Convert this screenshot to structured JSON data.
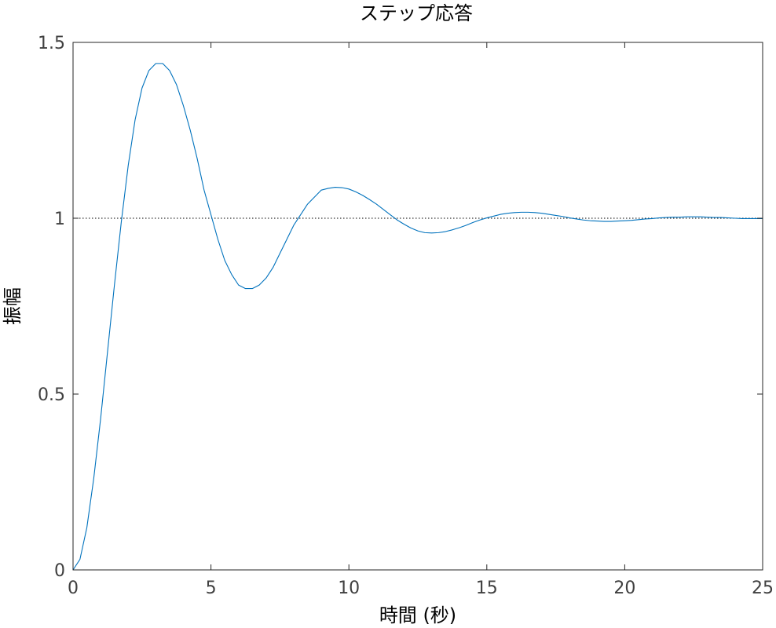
{
  "chart_data": {
    "type": "line",
    "title": "ステップ応答",
    "xlabel": "時間 (秒)",
    "ylabel": "振幅",
    "xlim": [
      0,
      25
    ],
    "ylim": [
      0,
      1.5
    ],
    "xticks": [
      0,
      5,
      10,
      15,
      20,
      25
    ],
    "yticks": [
      0,
      0.5,
      1,
      1.5
    ],
    "xtick_labels": [
      "0",
      "5",
      "10",
      "15",
      "20",
      "25"
    ],
    "ytick_labels": [
      "0",
      "0.5",
      "1",
      "1.5"
    ],
    "grid": false,
    "reference_line": {
      "y": 1,
      "style": "dotted"
    },
    "series": [
      {
        "color": "#0072bd",
        "points": [
          [
            0,
            0
          ],
          [
            0.25,
            0.03
          ],
          [
            0.5,
            0.12
          ],
          [
            0.75,
            0.26
          ],
          [
            1.0,
            0.43
          ],
          [
            1.25,
            0.62
          ],
          [
            1.5,
            0.81
          ],
          [
            1.75,
            0.99
          ],
          [
            2.0,
            1.15
          ],
          [
            2.25,
            1.28
          ],
          [
            2.5,
            1.37
          ],
          [
            2.75,
            1.42
          ],
          [
            3.0,
            1.44
          ],
          [
            3.25,
            1.44
          ],
          [
            3.5,
            1.42
          ],
          [
            3.75,
            1.38
          ],
          [
            4.0,
            1.32
          ],
          [
            4.25,
            1.25
          ],
          [
            4.5,
            1.17
          ],
          [
            4.75,
            1.08
          ],
          [
            5.0,
            1.01
          ],
          [
            5.25,
            0.94
          ],
          [
            5.5,
            0.88
          ],
          [
            5.75,
            0.84
          ],
          [
            6.0,
            0.81
          ],
          [
            6.25,
            0.8
          ],
          [
            6.5,
            0.8
          ],
          [
            6.75,
            0.81
          ],
          [
            7.0,
            0.83
          ],
          [
            7.25,
            0.86
          ],
          [
            7.5,
            0.9
          ],
          [
            7.75,
            0.94
          ],
          [
            8.0,
            0.98
          ],
          [
            8.25,
            1.01
          ],
          [
            8.5,
            1.04
          ],
          [
            8.75,
            1.06
          ],
          [
            9.0,
            1.08
          ],
          [
            9.25,
            1.085
          ],
          [
            9.5,
            1.088
          ],
          [
            9.75,
            1.087
          ],
          [
            10.0,
            1.083
          ],
          [
            10.25,
            1.075
          ],
          [
            10.5,
            1.065
          ],
          [
            10.75,
            1.053
          ],
          [
            11.0,
            1.04
          ],
          [
            11.25,
            1.025
          ],
          [
            11.5,
            1.01
          ],
          [
            11.75,
            0.995
          ],
          [
            12.0,
            0.983
          ],
          [
            12.25,
            0.972
          ],
          [
            12.5,
            0.964
          ],
          [
            12.75,
            0.959
          ],
          [
            13.0,
            0.958
          ],
          [
            13.25,
            0.959
          ],
          [
            13.5,
            0.962
          ],
          [
            13.75,
            0.967
          ],
          [
            14.0,
            0.973
          ],
          [
            14.25,
            0.98
          ],
          [
            14.5,
            0.988
          ],
          [
            14.75,
            0.995
          ],
          [
            15.0,
            1.001
          ],
          [
            15.25,
            1.006
          ],
          [
            15.5,
            1.011
          ],
          [
            15.75,
            1.014
          ],
          [
            16.0,
            1.016
          ],
          [
            16.25,
            1.017
          ],
          [
            16.5,
            1.017
          ],
          [
            16.75,
            1.016
          ],
          [
            17.0,
            1.014
          ],
          [
            17.25,
            1.011
          ],
          [
            17.5,
            1.008
          ],
          [
            17.75,
            1.005
          ],
          [
            18.0,
            1.001
          ],
          [
            18.25,
            0.998
          ],
          [
            18.5,
            0.995
          ],
          [
            18.75,
            0.993
          ],
          [
            19.0,
            0.992
          ],
          [
            19.25,
            0.991
          ],
          [
            19.5,
            0.991
          ],
          [
            19.75,
            0.992
          ],
          [
            20.0,
            0.993
          ],
          [
            20.25,
            0.994
          ],
          [
            20.5,
            0.996
          ],
          [
            20.75,
            0.998
          ],
          [
            21.0,
            0.999
          ],
          [
            21.25,
            1.001
          ],
          [
            21.5,
            1.002
          ],
          [
            21.75,
            1.003
          ],
          [
            22.0,
            1.003
          ],
          [
            22.25,
            1.004
          ],
          [
            22.5,
            1.004
          ],
          [
            22.75,
            1.004
          ],
          [
            23.0,
            1.003
          ],
          [
            23.25,
            1.002
          ],
          [
            23.5,
            1.002
          ],
          [
            23.75,
            1.001
          ],
          [
            24.0,
            1.0
          ],
          [
            24.25,
            0.999
          ],
          [
            24.5,
            0.999
          ],
          [
            24.75,
            0.999
          ],
          [
            25.0,
            0.999
          ]
        ]
      }
    ]
  }
}
